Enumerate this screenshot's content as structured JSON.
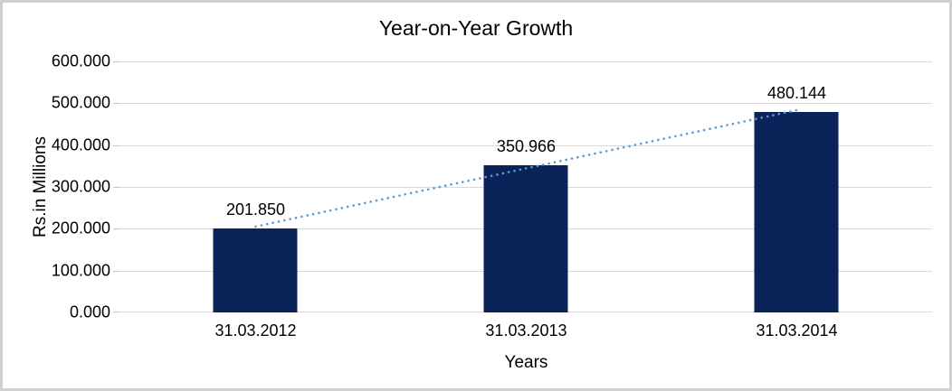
{
  "chart_data": {
    "type": "bar",
    "title": "Year-on-Year Growth",
    "xlabel": "Years",
    "ylabel": "Rs.in Millions",
    "categories": [
      "31.03.2012",
      "31.03.2013",
      "31.03.2014"
    ],
    "values": [
      201.85,
      350.966,
      480.144
    ],
    "data_labels": [
      "201.850",
      "350.966",
      "480.144"
    ],
    "yticks": [
      "600.000",
      "500.000",
      "400.000",
      "300.000",
      "200.000",
      "100.000",
      "0.000"
    ],
    "ylim": [
      0,
      600
    ],
    "grid": true,
    "legend": "none",
    "trendline": {
      "type": "linear",
      "style": "dotted-round"
    },
    "colors": {
      "bar": "#0a2359",
      "trendline": "#5b9bd5",
      "gridline": "#d9d9d9",
      "tickmark": "#c3c3c3",
      "text": "#000000",
      "border": "#d0d0d0",
      "background": "#ffffff"
    }
  }
}
